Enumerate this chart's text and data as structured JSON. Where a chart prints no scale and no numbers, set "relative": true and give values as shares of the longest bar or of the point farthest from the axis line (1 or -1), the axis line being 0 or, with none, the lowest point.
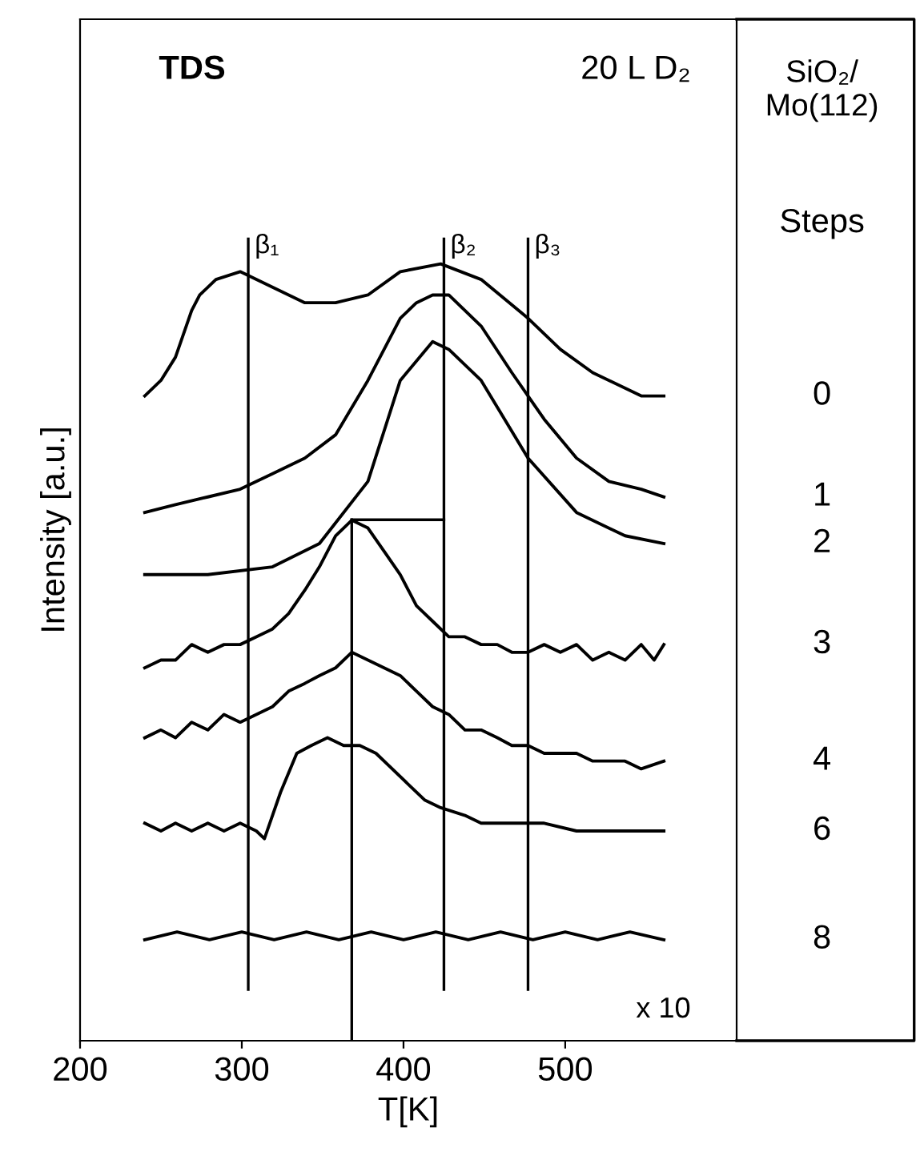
{
  "chart_data": {
    "type": "line",
    "title": "TDS",
    "xlabel": "T[K]",
    "ylabel": "Intensity [a.u.]",
    "relative": true,
    "xlim": [
      200,
      606
    ],
    "xticks": [
      200,
      300,
      400,
      500
    ],
    "grid": false,
    "marker": "none",
    "line_style": "solid",
    "annotations": [
      "20 L D₂",
      "x 10",
      "SiO₂/\nMo(112)",
      "Steps"
    ],
    "ref_lines": [
      {
        "axis": "x",
        "value": 304,
        "label": "β₁"
      },
      {
        "axis": "x",
        "value": 425,
        "label": "β₂"
      },
      {
        "axis": "x",
        "value": 477,
        "label": "β₃"
      },
      {
        "axis": "x",
        "value": 368
      }
    ],
    "series": [
      {
        "name": "0",
        "color": "#000000",
        "x": [
          240,
          250,
          259,
          269,
          274,
          284,
          299,
          319,
          339,
          358,
          378,
          398,
          423,
          448,
          477,
          497,
          517,
          547,
          561
        ],
        "values": [
          0.83,
          0.85,
          0.88,
          0.94,
          0.96,
          0.98,
          0.99,
          0.97,
          0.95,
          0.95,
          0.96,
          0.99,
          1.0,
          0.98,
          0.93,
          0.89,
          0.86,
          0.83,
          0.83
        ]
      },
      {
        "name": "1",
        "color": "#000000",
        "x": [
          240,
          259,
          279,
          299,
          319,
          339,
          358,
          378,
          398,
          408,
          418,
          428,
          438,
          448,
          467,
          487,
          507,
          527,
          547,
          561
        ],
        "values": [
          0.68,
          0.69,
          0.7,
          0.71,
          0.73,
          0.75,
          0.78,
          0.85,
          0.93,
          0.95,
          0.96,
          0.96,
          0.94,
          0.92,
          0.86,
          0.8,
          0.75,
          0.72,
          0.71,
          0.7
        ]
      },
      {
        "name": "2",
        "color": "#000000",
        "x": [
          240,
          279,
          319,
          348,
          378,
          398,
          418,
          428,
          448,
          477,
          507,
          537,
          561
        ],
        "values": [
          0.6,
          0.6,
          0.61,
          0.64,
          0.72,
          0.85,
          0.9,
          0.89,
          0.85,
          0.75,
          0.68,
          0.65,
          0.64
        ]
      },
      {
        "name": "3",
        "color": "#000000",
        "x": [
          240,
          250,
          259,
          269,
          279,
          289,
          299,
          309,
          319,
          329,
          339,
          348,
          358,
          368,
          378,
          388,
          398,
          408,
          418,
          428,
          438,
          448,
          458,
          467,
          477,
          487,
          497,
          507,
          517,
          527,
          537,
          547,
          555,
          561
        ],
        "values": [
          0.48,
          0.49,
          0.49,
          0.51,
          0.5,
          0.51,
          0.51,
          0.52,
          0.53,
          0.55,
          0.58,
          0.61,
          0.65,
          0.67,
          0.66,
          0.63,
          0.6,
          0.56,
          0.54,
          0.52,
          0.52,
          0.51,
          0.51,
          0.5,
          0.5,
          0.51,
          0.5,
          0.51,
          0.49,
          0.5,
          0.49,
          0.51,
          0.49,
          0.51
        ]
      },
      {
        "name": "4",
        "color": "#000000",
        "x": [
          240,
          250,
          259,
          269,
          279,
          289,
          299,
          309,
          319,
          329,
          339,
          348,
          358,
          368,
          378,
          388,
          398,
          408,
          418,
          428,
          438,
          448,
          458,
          467,
          477,
          487,
          497,
          507,
          517,
          527,
          537,
          547,
          561
        ],
        "values": [
          0.39,
          0.4,
          0.39,
          0.41,
          0.4,
          0.42,
          0.41,
          0.42,
          0.43,
          0.45,
          0.46,
          0.47,
          0.48,
          0.5,
          0.49,
          0.48,
          0.47,
          0.45,
          0.43,
          0.42,
          0.4,
          0.4,
          0.39,
          0.38,
          0.38,
          0.37,
          0.37,
          0.37,
          0.36,
          0.36,
          0.36,
          0.35,
          0.36
        ]
      },
      {
        "name": "6",
        "color": "#000000",
        "x": [
          240,
          250,
          259,
          269,
          279,
          289,
          299,
          309,
          314,
          324,
          334,
          343,
          353,
          363,
          373,
          383,
          393,
          403,
          413,
          423,
          438,
          448,
          467,
          487,
          507,
          527,
          547,
          561
        ],
        "values": [
          0.28,
          0.27,
          0.28,
          0.27,
          0.28,
          0.27,
          0.28,
          0.27,
          0.26,
          0.32,
          0.37,
          0.38,
          0.39,
          0.38,
          0.38,
          0.37,
          0.35,
          0.33,
          0.31,
          0.3,
          0.29,
          0.28,
          0.28,
          0.28,
          0.27,
          0.27,
          0.27,
          0.27
        ]
      },
      {
        "name": "8",
        "color": "#000000",
        "x": [
          240,
          260,
          280,
          300,
          320,
          340,
          360,
          380,
          400,
          420,
          440,
          460,
          480,
          500,
          520,
          540,
          561
        ],
        "values": [
          0.13,
          0.14,
          0.13,
          0.14,
          0.13,
          0.14,
          0.13,
          0.14,
          0.13,
          0.14,
          0.13,
          0.14,
          0.13,
          0.14,
          0.13,
          0.14,
          0.13
        ]
      }
    ]
  }
}
